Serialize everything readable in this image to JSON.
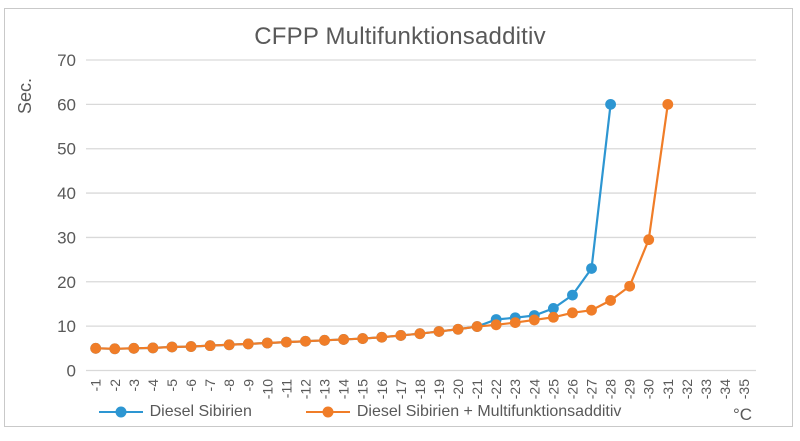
{
  "chart_data": {
    "type": "line",
    "title": "CFPP Multifunktionsadditiv",
    "ylabel": "Sec.",
    "xlabel": "°C",
    "ylim": [
      0,
      70
    ],
    "ytick_step": 10,
    "grid": true,
    "legend_position": "bottom",
    "categories": [
      "-1",
      "-2",
      "-3",
      "-4",
      "-5",
      "-6",
      "-7",
      "-8",
      "-9",
      "-10",
      "-11",
      "-12",
      "-13",
      "-14",
      "-15",
      "-16",
      "-17",
      "-18",
      "-19",
      "-20",
      "-21",
      "-22",
      "-23",
      "-24",
      "-25",
      "-26",
      "-27",
      "-28",
      "-29",
      "-30",
      "-31",
      "-32",
      "-33",
      "-34",
      "-35"
    ],
    "series": [
      {
        "name": "Diesel Sibirien",
        "color": "#2d96d2",
        "values": [
          5,
          4.9,
          5,
          5.1,
          5.3,
          5.4,
          5.6,
          5.8,
          6,
          6.2,
          6.4,
          6.6,
          6.8,
          7,
          7.2,
          7.5,
          7.9,
          8.3,
          8.8,
          9.3,
          9.9,
          11.5,
          11.9,
          12.4,
          14,
          17,
          23,
          60,
          null,
          null,
          null,
          null,
          null,
          null,
          null
        ]
      },
      {
        "name": "Diesel Sibirien + Multifunktionsadditiv",
        "color": "#f07d28",
        "values": [
          5,
          4.9,
          5,
          5.1,
          5.3,
          5.4,
          5.6,
          5.8,
          6,
          6.2,
          6.4,
          6.6,
          6.8,
          7,
          7.2,
          7.5,
          7.9,
          8.3,
          8.8,
          9.3,
          9.9,
          10.3,
          10.8,
          11.4,
          12,
          13,
          13.6,
          15.8,
          19,
          29.5,
          60,
          null,
          null,
          null,
          null
        ]
      }
    ]
  },
  "style": {
    "grid_color": "#d9d9d9",
    "text_color": "#595959",
    "border_color": "#c9c9c9",
    "background": "#ffffff"
  }
}
